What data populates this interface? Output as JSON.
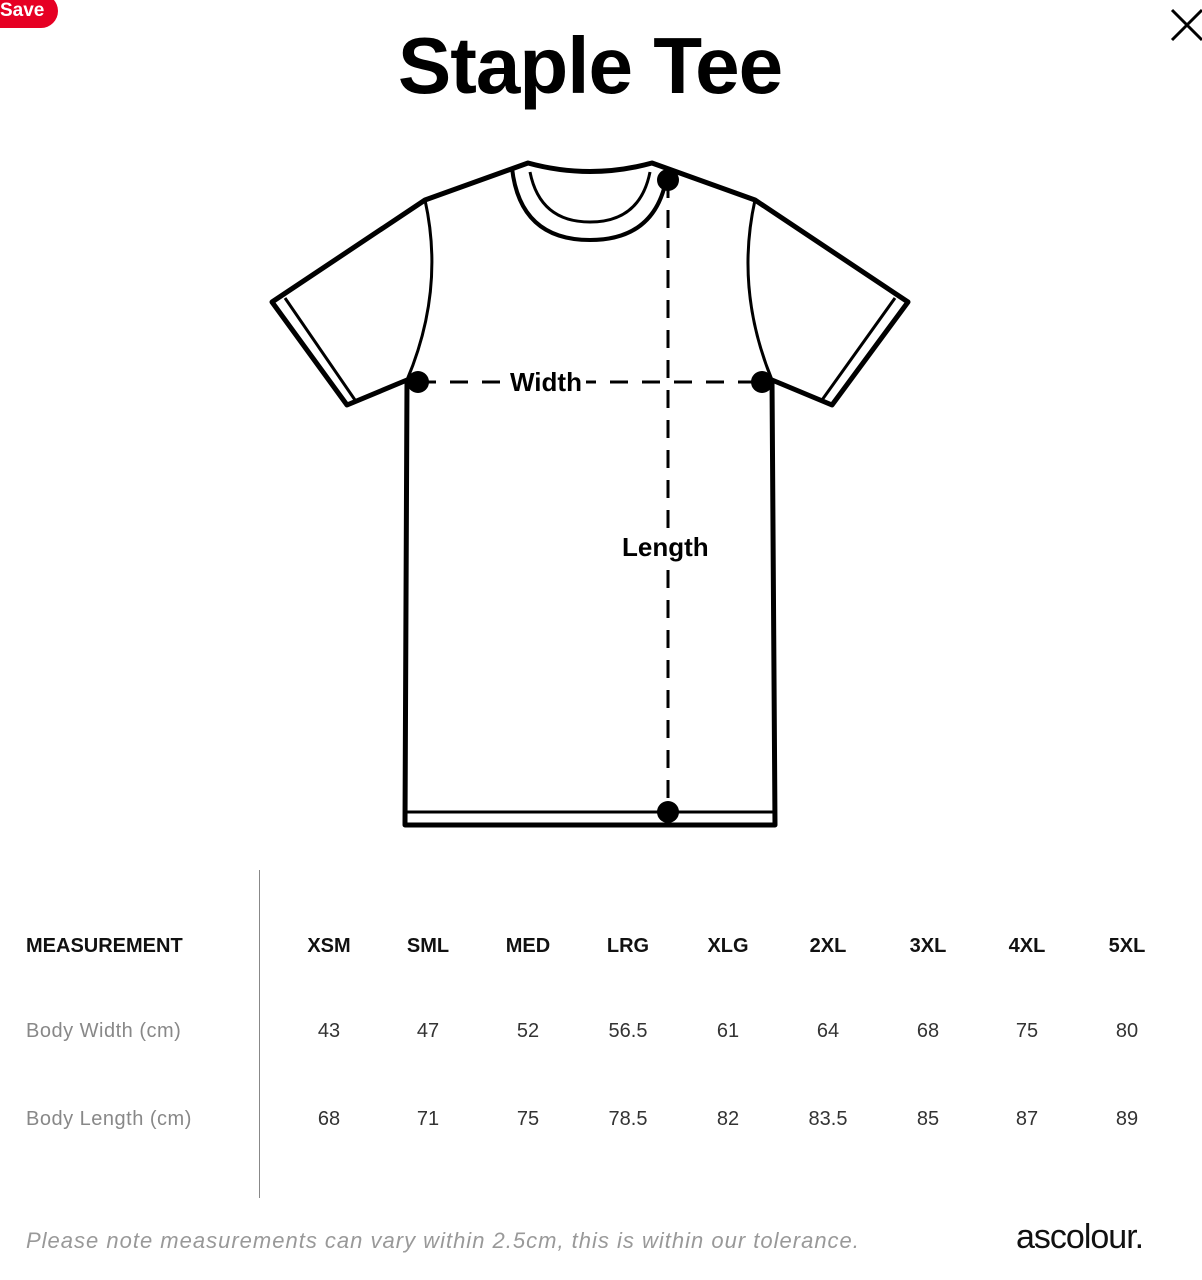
{
  "save_label": "Save",
  "title": "Staple Tee",
  "diagram": {
    "width_label": "Width",
    "length_label": "Length"
  },
  "table": {
    "header": "MEASUREMENT",
    "sizes": [
      "XSM",
      "SML",
      "MED",
      "LRG",
      "XLG",
      "2XL",
      "3XL",
      "4XL",
      "5XL"
    ],
    "rows": [
      {
        "label": "Body Width (cm)",
        "values": [
          "43",
          "47",
          "52",
          "56.5",
          "61",
          "64",
          "68",
          "75",
          "80"
        ]
      },
      {
        "label": "Body Length (cm)",
        "values": [
          "68",
          "71",
          "75",
          "78.5",
          "82",
          "83.5",
          "85",
          "87",
          "89"
        ]
      }
    ]
  },
  "note": "Please note measurements can vary within 2.5cm, this is within our tolerance.",
  "brand": "ascolour.",
  "colors": {
    "save": "#e60023"
  }
}
